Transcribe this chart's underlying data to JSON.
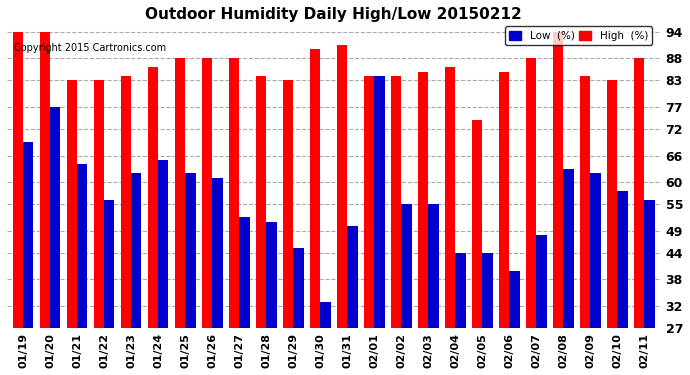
{
  "title": "Outdoor Humidity Daily High/Low 20150212",
  "copyright": "Copyright 2015 Cartronics.com",
  "dates": [
    "01/19",
    "01/20",
    "01/21",
    "01/22",
    "01/23",
    "01/24",
    "01/25",
    "01/26",
    "01/27",
    "01/28",
    "01/29",
    "01/30",
    "01/31",
    "02/01",
    "02/02",
    "02/03",
    "02/04",
    "02/05",
    "02/06",
    "02/07",
    "02/08",
    "02/09",
    "02/10",
    "02/11"
  ],
  "high": [
    94,
    94,
    83,
    83,
    84,
    86,
    88,
    88,
    88,
    84,
    83,
    90,
    91,
    84,
    84,
    85,
    86,
    74,
    85,
    88,
    94,
    84,
    83,
    88
  ],
  "low": [
    69,
    77,
    64,
    56,
    62,
    65,
    62,
    61,
    52,
    51,
    45,
    33,
    50,
    84,
    55,
    55,
    44,
    44,
    40,
    48,
    63,
    62,
    58,
    56
  ],
  "ylim": [
    27,
    95
  ],
  "yticks": [
    27,
    32,
    38,
    44,
    49,
    55,
    60,
    66,
    72,
    77,
    83,
    88,
    94
  ],
  "high_color": "#ff0000",
  "low_color": "#0000cc",
  "bg_color": "#ffffff",
  "grid_color": "#aaaaaa",
  "bar_width": 0.38,
  "legend_low_label": "Low  (%)",
  "legend_high_label": "High  (%)"
}
